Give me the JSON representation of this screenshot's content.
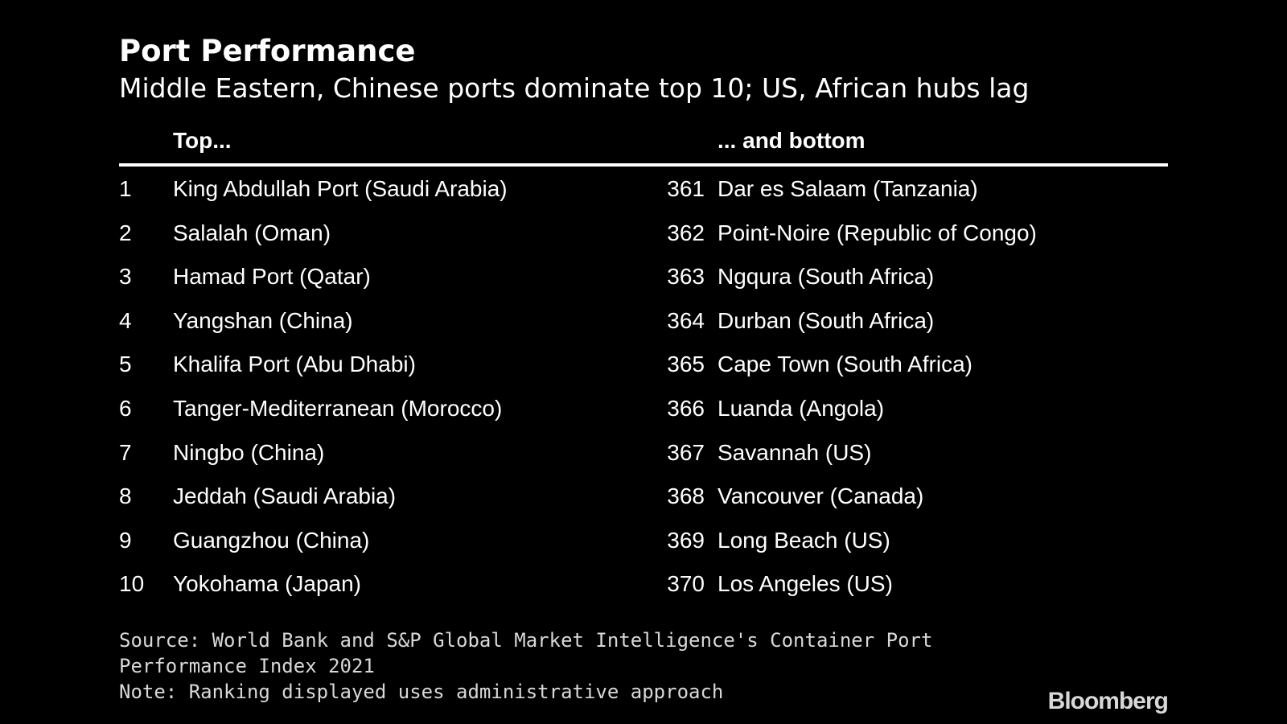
{
  "chart_data": {
    "type": "table",
    "title": "Port Performance",
    "subtitle": "Middle Eastern, Chinese ports dominate top 10; US, African hubs lag",
    "columns": [
      "Top...",
      "... and bottom"
    ],
    "top": [
      {
        "rank": "1",
        "port": "King Abdullah Port (Saudi Arabia)"
      },
      {
        "rank": "2",
        "port": "Salalah (Oman)"
      },
      {
        "rank": "3",
        "port": "Hamad Port (Qatar)"
      },
      {
        "rank": "4",
        "port": "Yangshan (China)"
      },
      {
        "rank": "5",
        "port": "Khalifa Port (Abu Dhabi)"
      },
      {
        "rank": "6",
        "port": "Tanger-Mediterranean (Morocco)"
      },
      {
        "rank": "7",
        "port": "Ningbo (China)"
      },
      {
        "rank": "8",
        "port": "Jeddah (Saudi Arabia)"
      },
      {
        "rank": "9",
        "port": "Guangzhou (China)"
      },
      {
        "rank": "10",
        "port": "Yokohama (Japan)"
      }
    ],
    "bottom": [
      {
        "rank": "361",
        "port": "Dar es Salaam (Tanzania)"
      },
      {
        "rank": "362",
        "port": "Point-Noire (Republic of Congo)"
      },
      {
        "rank": "363",
        "port": "Ngqura (South Africa)"
      },
      {
        "rank": "364",
        "port": "Durban (South Africa)"
      },
      {
        "rank": "365",
        "port": "Cape Town (South Africa)"
      },
      {
        "rank": "366",
        "port": "Luanda (Angola)"
      },
      {
        "rank": "367",
        "port": "Savannah (US)"
      },
      {
        "rank": "368",
        "port": "Vancouver (Canada)"
      },
      {
        "rank": "369",
        "port": "Long Beach (US)"
      },
      {
        "rank": "370",
        "port": "Los Angeles (US)"
      }
    ]
  },
  "footer": {
    "source_line1": "Source: World Bank and S&P Global Market Intelligence's Container Port",
    "source_line2": "Performance Index 2021",
    "note": "Note: Ranking displayed uses administrative approach",
    "logo": "Bloomberg"
  },
  "colors": {
    "background": "#000000",
    "text": "#ffffff",
    "footer_text": "#d8d8d8"
  }
}
